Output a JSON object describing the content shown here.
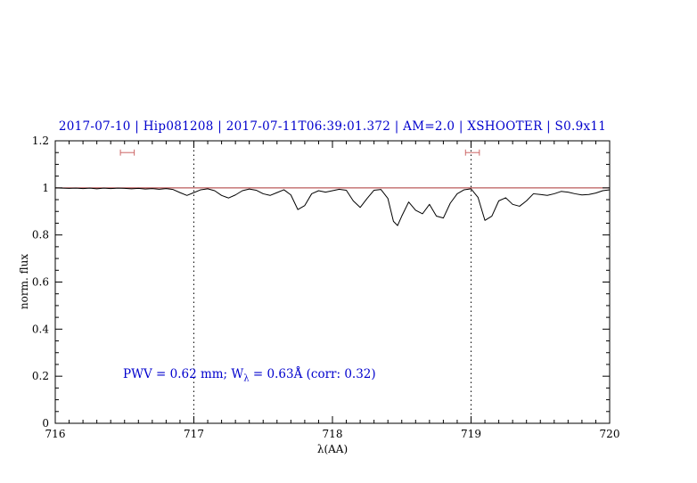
{
  "page": {
    "background": "#ffffff"
  },
  "chart_data": {
    "type": "line",
    "title": "2017-07-10 | Hip081208 | 2017-07-11T06:39:01.372 | AM=2.0 | XSHOOTER | S0.9x11",
    "title_color": "#0000cd",
    "xlabel": "λ(AA)",
    "ylabel": "norm. flux",
    "xlim": [
      716,
      720
    ],
    "ylim": [
      0,
      1.2
    ],
    "grid": "off",
    "legend": "none",
    "xticks": {
      "major": [
        716,
        717,
        718,
        719,
        720
      ],
      "labels": [
        "716",
        "717",
        "718",
        "719",
        "720"
      ],
      "minor_step": 0.1
    },
    "yticks": {
      "major": [
        0,
        0.2,
        0.4,
        0.6,
        0.8,
        1,
        1.2
      ],
      "labels": [
        "0",
        "0.2",
        "0.4",
        "0.6",
        "0.8",
        "1",
        "1.2"
      ],
      "minor_step": 0.05
    },
    "vlines": {
      "x": [
        717,
        719
      ],
      "style": "dotted",
      "color": "#000000"
    },
    "continuum": {
      "y": 1.0,
      "color": "#aa3333"
    },
    "region_markers": {
      "y": 1.15,
      "color": "#cc6666",
      "half_width": 0.05,
      "cap_half_height": 0.013,
      "centers": [
        716.52,
        719.01
      ]
    },
    "annotation": {
      "text_prefix": "PWV = 0.62 mm; W",
      "text_sub": "λ",
      "text_suffix": " = 0.63Å (corr: 0.32)",
      "color": "#0000cd",
      "x": 716.5,
      "y": 0.22
    },
    "series": [
      {
        "name": "spectrum",
        "color": "#000000",
        "points": [
          [
            716.0,
            1.0
          ],
          [
            716.05,
            0.999
          ],
          [
            716.1,
            0.998
          ],
          [
            716.15,
            0.999
          ],
          [
            716.2,
            0.997
          ],
          [
            716.25,
            0.999
          ],
          [
            716.3,
            0.996
          ],
          [
            716.35,
            0.999
          ],
          [
            716.4,
            0.997
          ],
          [
            716.45,
            0.999
          ],
          [
            716.5,
            0.998
          ],
          [
            716.55,
            0.996
          ],
          [
            716.6,
            0.998
          ],
          [
            716.65,
            0.995
          ],
          [
            716.7,
            0.997
          ],
          [
            716.75,
            0.994
          ],
          [
            716.8,
            0.997
          ],
          [
            716.85,
            0.993
          ],
          [
            716.9,
            0.98
          ],
          [
            716.95,
            0.968
          ],
          [
            717.0,
            0.98
          ],
          [
            717.05,
            0.992
          ],
          [
            717.1,
            0.996
          ],
          [
            717.15,
            0.988
          ],
          [
            717.2,
            0.968
          ],
          [
            717.25,
            0.957
          ],
          [
            717.3,
            0.97
          ],
          [
            717.35,
            0.988
          ],
          [
            717.4,
            0.995
          ],
          [
            717.45,
            0.99
          ],
          [
            717.5,
            0.975
          ],
          [
            717.55,
            0.968
          ],
          [
            717.6,
            0.98
          ],
          [
            717.65,
            0.992
          ],
          [
            717.7,
            0.97
          ],
          [
            717.75,
            0.908
          ],
          [
            717.8,
            0.925
          ],
          [
            717.85,
            0.975
          ],
          [
            717.9,
            0.988
          ],
          [
            717.95,
            0.982
          ],
          [
            718.0,
            0.988
          ],
          [
            718.05,
            0.994
          ],
          [
            718.1,
            0.99
          ],
          [
            718.15,
            0.945
          ],
          [
            718.2,
            0.917
          ],
          [
            718.25,
            0.955
          ],
          [
            718.3,
            0.99
          ],
          [
            718.35,
            0.993
          ],
          [
            718.4,
            0.955
          ],
          [
            718.44,
            0.858
          ],
          [
            718.47,
            0.84
          ],
          [
            718.5,
            0.88
          ],
          [
            718.55,
            0.94
          ],
          [
            718.6,
            0.905
          ],
          [
            718.65,
            0.89
          ],
          [
            718.7,
            0.93
          ],
          [
            718.75,
            0.88
          ],
          [
            718.8,
            0.872
          ],
          [
            718.85,
            0.935
          ],
          [
            718.9,
            0.975
          ],
          [
            718.95,
            0.992
          ],
          [
            719.0,
            0.996
          ],
          [
            719.05,
            0.96
          ],
          [
            719.1,
            0.862
          ],
          [
            719.15,
            0.88
          ],
          [
            719.2,
            0.945
          ],
          [
            719.25,
            0.958
          ],
          [
            719.3,
            0.93
          ],
          [
            719.35,
            0.922
          ],
          [
            719.4,
            0.945
          ],
          [
            719.45,
            0.975
          ],
          [
            719.5,
            0.972
          ],
          [
            719.55,
            0.968
          ],
          [
            719.6,
            0.975
          ],
          [
            719.65,
            0.985
          ],
          [
            719.7,
            0.982
          ],
          [
            719.75,
            0.975
          ],
          [
            719.8,
            0.97
          ],
          [
            719.85,
            0.972
          ],
          [
            719.9,
            0.978
          ],
          [
            719.95,
            0.988
          ],
          [
            720.0,
            0.992
          ]
        ]
      }
    ]
  }
}
